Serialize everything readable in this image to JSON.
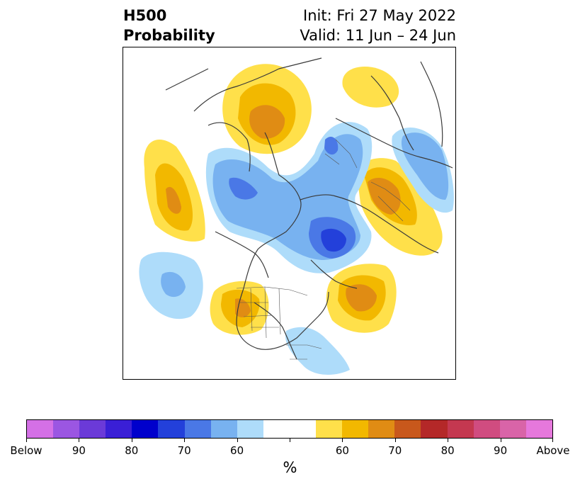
{
  "title": {
    "left_line1": "H500",
    "left_line2": "Probability",
    "right_line1": "Init: Fri 27 May 2022",
    "right_line2": "Valid: 11 Jun – 24 Jun"
  },
  "colorbar": {
    "colors": [
      "#d470e6",
      "#9b56e2",
      "#6b3ad8",
      "#3a1fd6",
      "#0000cc",
      "#2340da",
      "#4a78e6",
      "#78b2f0",
      "#aedcfa",
      "#ffffff",
      "#ffffff",
      "#ffe04a",
      "#f2b800",
      "#e08c14",
      "#c8581c",
      "#b42828",
      "#c43850",
      "#d04c80",
      "#d964a8",
      "#e678dc"
    ],
    "tick_labels": [
      "Below",
      "90",
      "80",
      "70",
      "60",
      "",
      "60",
      "70",
      "80",
      "90",
      "Above"
    ],
    "unit_label": "%"
  },
  "legend_scale": {
    "below_colors": {
      "c50": "#aedcfa",
      "c60": "#78b2f0",
      "c70": "#4a78e6",
      "c80": "#2340da"
    },
    "above_colors": {
      "c50": "#ffe04a",
      "c60": "#f2b800",
      "c70": "#e08c14",
      "c80": "#c8581c"
    }
  }
}
